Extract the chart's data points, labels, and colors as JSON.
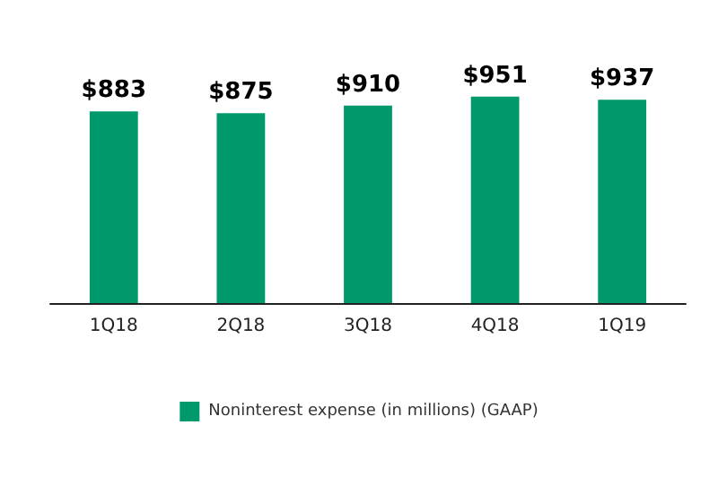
{
  "chart_data": {
    "type": "bar",
    "categories": [
      "1Q18",
      "2Q18",
      "3Q18",
      "4Q18",
      "1Q19"
    ],
    "series": [
      {
        "name": "Noninterest expense (in millions) (GAAP)",
        "color": "#00996b",
        "values": [
          883,
          875,
          910,
          951,
          937
        ],
        "value_labels": [
          "$883",
          "$875",
          "$910",
          "$951",
          "$937"
        ]
      }
    ],
    "tick_labels": "x",
    "grid": false,
    "legend": "bottom"
  }
}
